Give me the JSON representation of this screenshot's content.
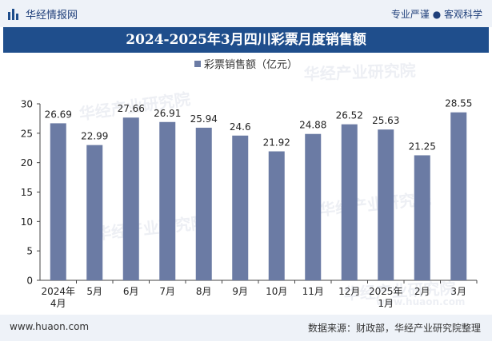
{
  "header": {
    "brand": "华经情报网",
    "tagline": "专业严谨 ● 客观科学"
  },
  "footer": {
    "website": "www.huaon.com",
    "source": "数据来源：财政部，华经产业研究院整理"
  },
  "watermark": {
    "text": "华经产业研究院",
    "url": "www.huaon.com"
  },
  "colors": {
    "bar": "#6b7ba4",
    "title_bg": "#1f4e8c",
    "band_bg": "#eef2f8"
  },
  "chart_data": {
    "type": "bar",
    "title": "2024-2025年3月四川彩票月度销售额",
    "categories": [
      "2024年4月",
      "5月",
      "6月",
      "7月",
      "8月",
      "9月",
      "10月",
      "11月",
      "12月",
      "2025年1月",
      "2月",
      "3月"
    ],
    "series": [
      {
        "name": "彩票销售额（亿元）",
        "values": [
          26.69,
          22.99,
          27.66,
          26.91,
          25.94,
          24.6,
          21.92,
          24.88,
          26.52,
          25.63,
          21.25,
          28.55
        ]
      }
    ],
    "value_labels": [
      "26.69",
      "22.99",
      "27.66",
      "26.91",
      "25.94",
      "24.6",
      "21.92",
      "24.88",
      "26.52",
      "25.63",
      "21.25",
      "28.55"
    ],
    "yticks": [
      "0",
      "5",
      "10",
      "15",
      "20",
      "25",
      "30"
    ],
    "ylim": [
      0,
      30
    ],
    "legend_position": "top-center",
    "grid": false
  }
}
